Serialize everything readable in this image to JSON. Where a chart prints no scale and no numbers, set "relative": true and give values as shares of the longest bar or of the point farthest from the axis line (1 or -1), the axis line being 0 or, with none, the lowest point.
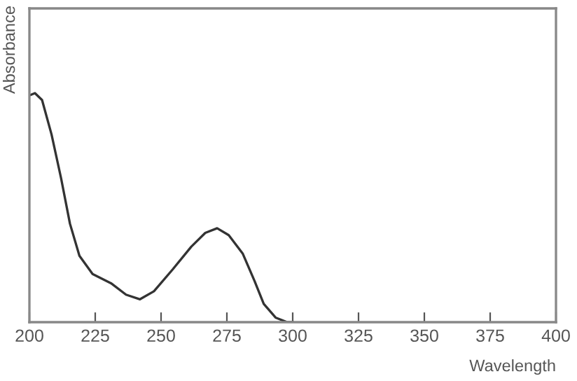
{
  "chart_data": {
    "type": "line",
    "relative": true,
    "xlabel": "Wavelength",
    "ylabel": "Absorbance",
    "color": "#333333",
    "x": [
      200,
      202.1,
      204.8,
      208.4,
      212,
      215.4,
      219,
      224,
      231,
      236.7,
      242,
      247.3,
      254.4,
      261.5,
      266.8,
      271.3,
      275.7,
      281,
      285.5,
      289,
      293.5,
      297.9,
      300
    ],
    "values": [
      0.99,
      1.0,
      0.97,
      0.82,
      0.63,
      0.43,
      0.29,
      0.21,
      0.17,
      0.12,
      0.1,
      0.135,
      0.23,
      0.33,
      0.39,
      0.41,
      0.38,
      0.3,
      0.18,
      0.08,
      0.02,
      0.0,
      0.0
    ],
    "xlim": [
      200,
      400
    ],
    "xticks": [
      200,
      225,
      250,
      275,
      300,
      325,
      350,
      375,
      400
    ],
    "tick_labels": "x",
    "grid": false
  }
}
